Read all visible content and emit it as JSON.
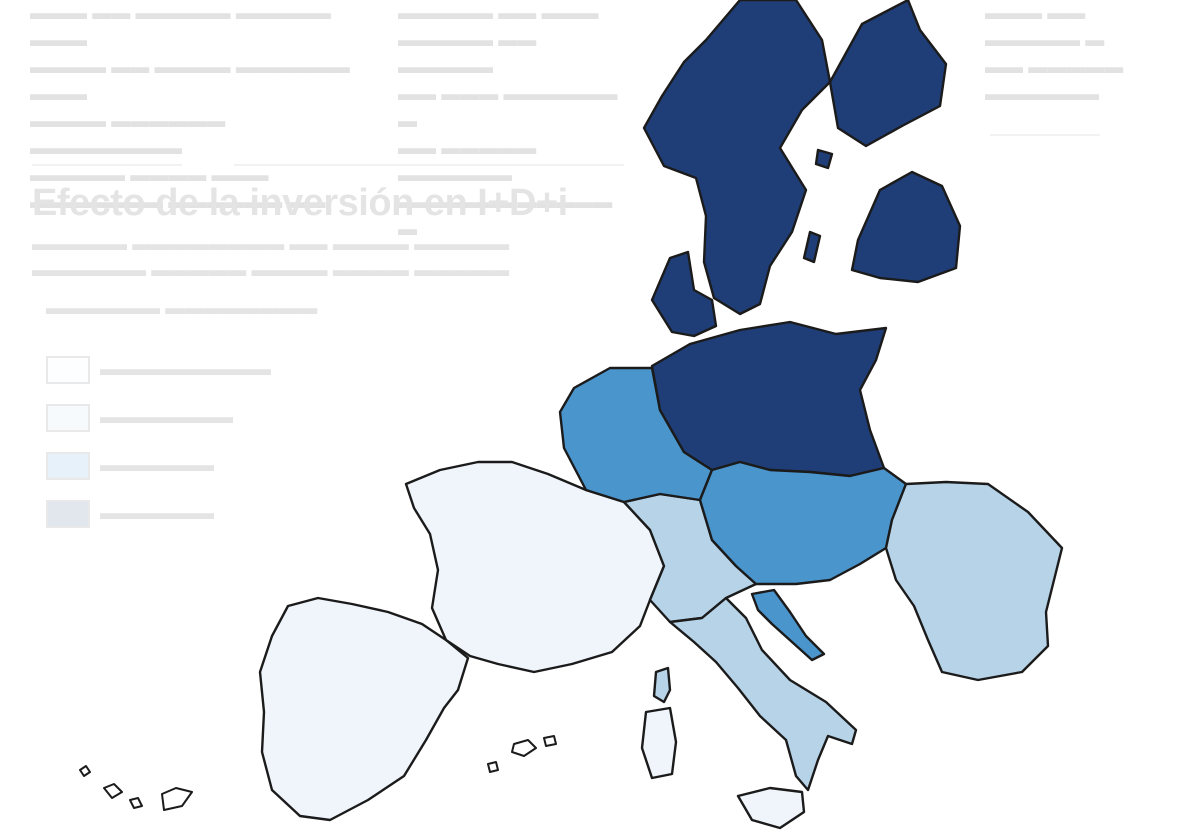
{
  "title": "Efecto de la inversión en I+D+i",
  "colors": {
    "class_1": "#eff5fb",
    "class_2": "#b7d3e8",
    "class_3": "#4b95cd",
    "class_4": "#1f3e77",
    "border": "#1b1b1b",
    "background": "#ffffff"
  },
  "map": {
    "type": "choropleth",
    "regions": [
      {
        "name": "Iberia",
        "class": 1
      },
      {
        "name": "France",
        "class": 1
      },
      {
        "name": "Alps / Northern Italy",
        "class": 2
      },
      {
        "name": "Italy",
        "class": 2
      },
      {
        "name": "Sardinia",
        "class": 1
      },
      {
        "name": "Corsica",
        "class": 2
      },
      {
        "name": "Sicily",
        "class": 1
      },
      {
        "name": "Benelux / Western Germany",
        "class": 3
      },
      {
        "name": "Northern & Eastern Germany / Poland",
        "class": 4
      },
      {
        "name": "Czechia / Austria / Hungary",
        "class": 3
      },
      {
        "name": "Croatia coast",
        "class": 3
      },
      {
        "name": "Romania / Bulgaria",
        "class": 2
      },
      {
        "name": "Denmark",
        "class": 4
      },
      {
        "name": "Scandinavia",
        "class": 4
      },
      {
        "name": "Finland",
        "class": 4
      },
      {
        "name": "Baltics",
        "class": 4
      }
    ]
  }
}
